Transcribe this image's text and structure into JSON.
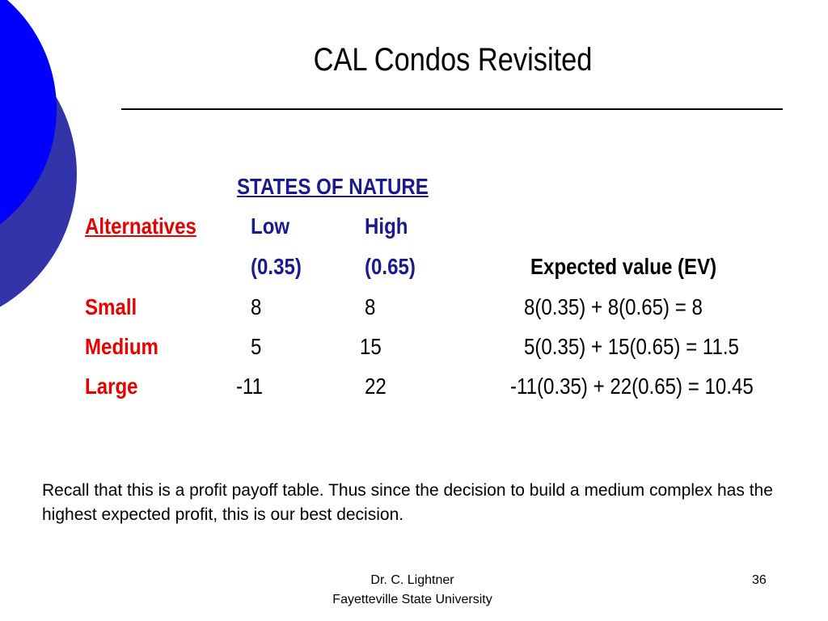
{
  "slide": {
    "title": "CAL Condos Revisited",
    "colors": {
      "circle_front": "#0000ff",
      "circle_back": "#3333aa",
      "states_header": "#1a1a8c",
      "alt_labels": "#e60000"
    }
  },
  "table": {
    "states_header": "STATES OF NATURE",
    "alternatives_header": "Alternatives",
    "states": [
      {
        "name": "Low",
        "prob": "(0.35)"
      },
      {
        "name": "High",
        "prob": "(0.65)"
      }
    ],
    "ev_header": "Expected value (EV)",
    "rows": [
      {
        "label": "Small",
        "low": "8",
        "high": "8",
        "ev": "8(0.35) + 8(0.65) = 8"
      },
      {
        "label": "Medium",
        "low": "5",
        "high": "15",
        "ev": "5(0.35) + 15(0.65) =  11.5"
      },
      {
        "label": "Large",
        "low": "-11",
        "high": "22",
        "ev": "-11(0.35) + 22(0.65) = 10.45"
      }
    ]
  },
  "note": "Recall that this is a profit payoff table.  Thus since the decision to build a medium complex has the highest expected profit, this is our best decision.",
  "footer": {
    "line1": "Dr. C. Lightner",
    "line2": "Fayetteville State University",
    "page": "36"
  }
}
